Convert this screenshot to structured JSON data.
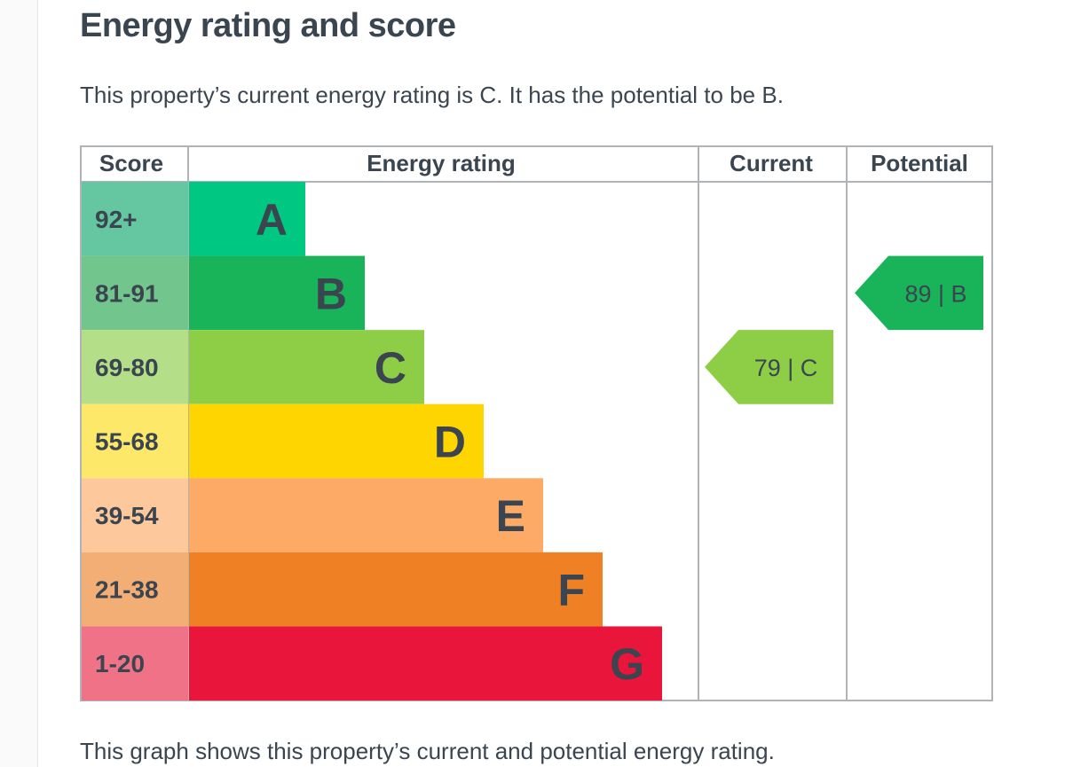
{
  "page": {
    "title": "Energy rating and score",
    "intro": "This property’s current energy rating is C. It has the potential to be B.",
    "footer": "This graph shows this property’s current and potential energy rating."
  },
  "chart_data": {
    "type": "bar",
    "headers": {
      "score": "Score",
      "rating": "Energy rating",
      "current": "Current",
      "potential": "Potential"
    },
    "bands": [
      {
        "letter": "A",
        "range": "92+",
        "color": "#00c781",
        "score_bg": "#64c7a1"
      },
      {
        "letter": "B",
        "range": "81-91",
        "color": "#19b459",
        "score_bg": "#72c68d"
      },
      {
        "letter": "C",
        "range": "69-80",
        "color": "#8dce46",
        "score_bg": "#b4df88"
      },
      {
        "letter": "D",
        "range": "55-68",
        "color": "#ffd500",
        "score_bg": "#fde86a"
      },
      {
        "letter": "E",
        "range": "39-54",
        "color": "#fcaa65",
        "score_bg": "#fdc99c"
      },
      {
        "letter": "F",
        "range": "21-38",
        "color": "#ef8023",
        "score_bg": "#f2ae74"
      },
      {
        "letter": "G",
        "range": "1-20",
        "color": "#e9153b",
        "score_bg": "#f07286"
      }
    ],
    "current": {
      "score": 79,
      "band": "C",
      "label": "79 | C"
    },
    "potential": {
      "score": 89,
      "band": "B",
      "label": "89 | B"
    }
  },
  "colors": {
    "text": "#3b4550",
    "grid": "#b1b4b6"
  }
}
